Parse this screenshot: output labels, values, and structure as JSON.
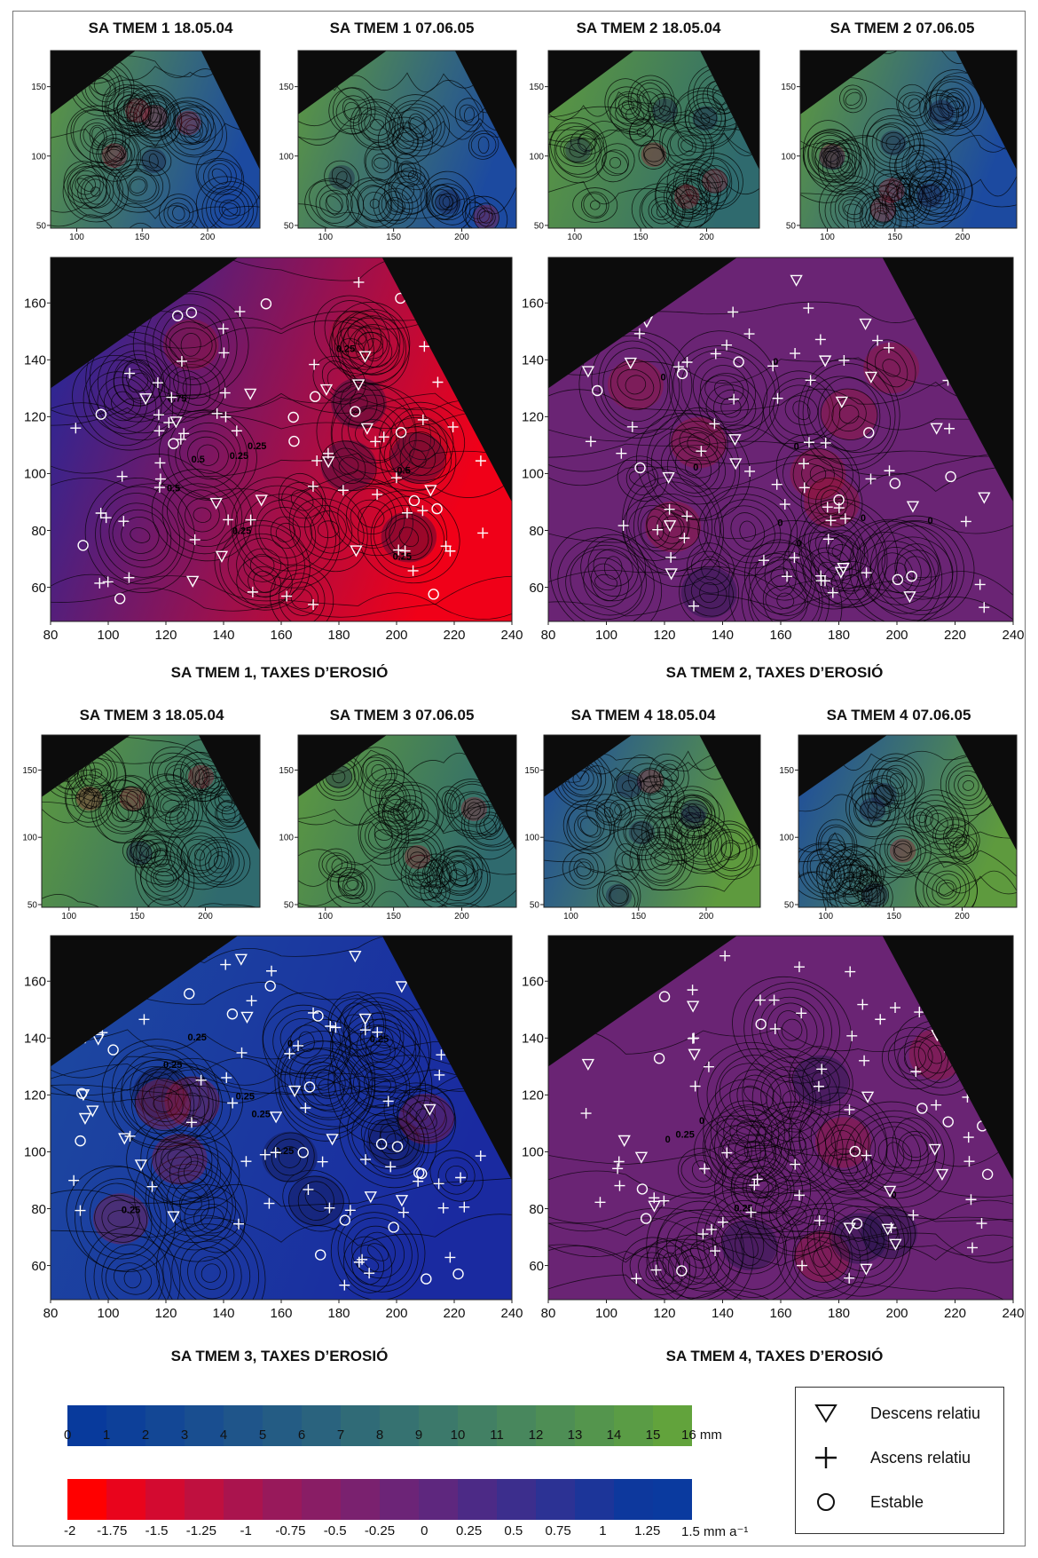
{
  "small_panel_titles": [
    "SA TMEM 1 18.05.04",
    "SA TMEM 1 07.06.05",
    "SA TMEM 2 18.05.04",
    "SA TMEM 2 07.06.05",
    "SA TMEM 3  18.05.04",
    "SA TMEM 3 07.06.05",
    "SA TMEM 4  18.05.04",
    "SA TMEM 4 07.06.05"
  ],
  "large_panel_titles": [
    "SA TMEM 1,  TAXES D’EROSIÓ",
    "SA TMEM 2,  TAXES D’EROSIÓ",
    "SA TMEM 3,  TAXES D’EROSIÓ",
    "SA TMEM 4,  TAXES D’EROSIÓ"
  ],
  "legend": {
    "descens": "Descens relatiu",
    "ascens": "Ascens relatiu",
    "estable": "Estable"
  },
  "colorbars": {
    "depth_labels": [
      "0",
      "1",
      "2",
      "3",
      "4",
      "5",
      "6",
      "7",
      "8",
      "9",
      "10",
      "11",
      "12",
      "13",
      "14",
      "15",
      "16 mm"
    ],
    "depth_colors": [
      "#083a9c",
      "#0d4099",
      "#134795",
      "#194e90",
      "#1f558a",
      "#245c84",
      "#2a637e",
      "#306b77",
      "#367271",
      "#3c796b",
      "#428064",
      "#48875d",
      "#4e8e55",
      "#54954d",
      "#5a9c45",
      "#62a33c"
    ],
    "rate_labels": [
      "-2",
      "-1.75",
      "-1.5",
      "-1.25",
      "-1",
      "-0.75",
      "-0.5",
      "-0.25",
      "0",
      "0.25",
      "0.5",
      "0.75",
      "1",
      "1.25",
      "1.5 mm a⁻¹"
    ],
    "rate_colors": [
      "#ff0000",
      "#e9041c",
      "#d30a30",
      "#bf103f",
      "#aa144e",
      "#98195b",
      "#891d65",
      "#7a216f",
      "#6c2477",
      "#5e277e",
      "#4c2a86",
      "#3c2e8d",
      "#2c3294",
      "#1c3599",
      "#0d389d",
      "#0a3a9f"
    ]
  },
  "chart_data": [
    {
      "type": "heatmap",
      "title": "SA TMEM 1 18.05.04",
      "x_ticks": [
        100,
        150,
        200
      ],
      "y_ticks": [
        50,
        100,
        150
      ],
      "xlim": [
        80,
        240
      ],
      "ylim": [
        48,
        176
      ]
    },
    {
      "type": "heatmap",
      "title": "SA TMEM 1 07.06.05",
      "x_ticks": [
        100,
        150,
        200
      ],
      "y_ticks": [
        50,
        100,
        150
      ],
      "xlim": [
        80,
        240
      ],
      "ylim": [
        48,
        176
      ]
    },
    {
      "type": "heatmap",
      "title": "SA TMEM 2 18.05.04",
      "x_ticks": [
        100,
        150,
        200
      ],
      "y_ticks": [
        50,
        100,
        150
      ],
      "xlim": [
        80,
        240
      ],
      "ylim": [
        48,
        176
      ]
    },
    {
      "type": "heatmap",
      "title": "SA TMEM 2 07.06.05",
      "x_ticks": [
        100,
        150,
        200
      ],
      "y_ticks": [
        50,
        100,
        150
      ],
      "xlim": [
        80,
        240
      ],
      "ylim": [
        48,
        176
      ]
    },
    {
      "type": "heatmap",
      "title": "SA TMEM 1,  TAXES D’EROSIÓ",
      "x_ticks": [
        80,
        100,
        120,
        140,
        160,
        180,
        200,
        220,
        240
      ],
      "y_ticks": [
        60,
        80,
        100,
        120,
        140,
        160
      ],
      "xlim": [
        80,
        240
      ],
      "ylim": [
        48,
        176
      ],
      "contour_labels": [
        "0.5",
        "0.25",
        "0.5",
        "0.25",
        "0.75",
        "0.25",
        "0.5",
        "0.25",
        "0.25"
      ]
    },
    {
      "type": "heatmap",
      "title": "SA TMEM 2,  TAXES D’EROSIÓ",
      "x_ticks": [
        80,
        100,
        120,
        140,
        160,
        180,
        200,
        220,
        240
      ],
      "y_ticks": [
        60,
        80,
        100,
        120,
        140,
        160
      ],
      "xlim": [
        80,
        240
      ],
      "ylim": [
        48,
        176
      ],
      "contour_labels": [
        "0",
        "0",
        "0",
        "0",
        "0",
        "0",
        "0",
        "0"
      ]
    },
    {
      "type": "heatmap",
      "title": "SA TMEM 3  18.05.04",
      "x_ticks": [
        100,
        150,
        200
      ],
      "y_ticks": [
        50,
        100,
        150
      ],
      "xlim": [
        80,
        240
      ],
      "ylim": [
        48,
        176
      ]
    },
    {
      "type": "heatmap",
      "title": "SA TMEM 3 07.06.05",
      "x_ticks": [
        100,
        150,
        200
      ],
      "y_ticks": [
        50,
        100,
        150
      ],
      "xlim": [
        80,
        240
      ],
      "ylim": [
        48,
        176
      ]
    },
    {
      "type": "heatmap",
      "title": "SA TMEM 4  18.05.04",
      "x_ticks": [
        100,
        150,
        200
      ],
      "y_ticks": [
        50,
        100,
        150
      ],
      "xlim": [
        80,
        240
      ],
      "ylim": [
        48,
        176
      ]
    },
    {
      "type": "heatmap",
      "title": "SA TMEM 4 07.06.05",
      "x_ticks": [
        100,
        150,
        200
      ],
      "y_ticks": [
        50,
        100,
        150
      ],
      "xlim": [
        80,
        240
      ],
      "ylim": [
        48,
        176
      ]
    },
    {
      "type": "heatmap",
      "title": "SA TMEM 3,  TAXES D’EROSIÓ",
      "x_ticks": [
        80,
        100,
        120,
        140,
        160,
        180,
        200,
        220,
        240
      ],
      "y_ticks": [
        60,
        80,
        100,
        120,
        140,
        160
      ],
      "xlim": [
        80,
        240
      ],
      "ylim": [
        48,
        176
      ],
      "contour_labels": [
        "0.25",
        "0.25",
        "0.25",
        "0.25",
        "0.25",
        "0.25",
        "0.25",
        "0"
      ]
    },
    {
      "type": "heatmap",
      "title": "SA TMEM 4,  TAXES D’EROSIÓ",
      "x_ticks": [
        80,
        100,
        120,
        140,
        160,
        180,
        200,
        220,
        240
      ],
      "y_ticks": [
        60,
        80,
        100,
        120,
        140,
        160
      ],
      "xlim": [
        80,
        240
      ],
      "ylim": [
        48,
        176
      ],
      "contour_labels": [
        "0",
        "0",
        "0",
        "0.25",
        "0.25"
      ]
    }
  ],
  "field_colors": {
    "black": "#0c0c0c",
    "green": "#5e9a3e",
    "teal": "#2f6a6e",
    "blue": "#1c4aa0",
    "red": "#f00018",
    "purple": "#6a2474",
    "deep_blue": "#1a2aa0"
  }
}
